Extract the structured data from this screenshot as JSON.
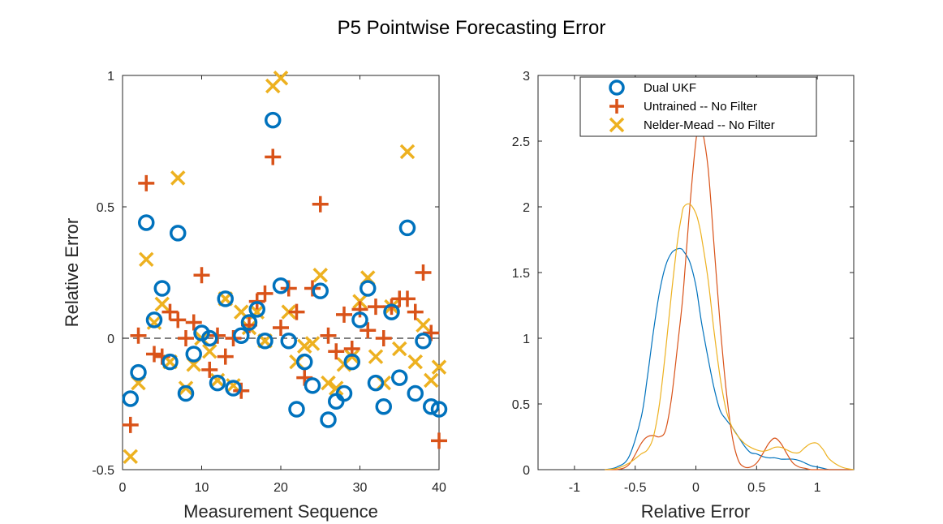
{
  "chart_data": [
    {
      "type": "scatter",
      "title": "P5 Pointwise Forecasting Error",
      "xlabel": "Measurement Sequence",
      "ylabel": "Relative Error",
      "xlim": [
        0,
        40
      ],
      "ylim": [
        -0.5,
        1
      ],
      "xticks": [
        "0",
        "10",
        "20",
        "30",
        "40"
      ],
      "yticks": [
        "-0.5",
        "0",
        "0.5",
        "1"
      ],
      "reference_line": 0,
      "series": [
        {
          "name": "Dual UKF",
          "marker": "circle",
          "color": "#0072BD",
          "x": [
            1,
            2,
            3,
            4,
            5,
            6,
            7,
            8,
            9,
            10,
            11,
            12,
            13,
            14,
            15,
            16,
            17,
            18,
            19,
            20,
            21,
            22,
            23,
            24,
            25,
            26,
            27,
            28,
            29,
            30,
            31,
            32,
            33,
            34,
            35,
            36,
            37,
            38,
            39,
            40
          ],
          "y": [
            -0.23,
            -0.13,
            0.44,
            0.07,
            0.19,
            -0.09,
            0.4,
            -0.21,
            -0.06,
            0.02,
            0.0,
            -0.17,
            0.15,
            -0.19,
            0.01,
            0.06,
            0.11,
            -0.01,
            0.83,
            0.2,
            -0.01,
            -0.27,
            -0.09,
            -0.18,
            0.18,
            -0.31,
            -0.24,
            -0.21,
            -0.09,
            0.07,
            0.19,
            -0.17,
            -0.26,
            0.1,
            -0.15,
            0.42,
            -0.21,
            -0.01,
            -0.26,
            -0.27
          ]
        },
        {
          "name": "Untrained -- No Filter",
          "marker": "plus",
          "color": "#D95319",
          "x": [
            1,
            2,
            3,
            4,
            5,
            6,
            7,
            8,
            9,
            10,
            11,
            12,
            13,
            14,
            15,
            16,
            17,
            18,
            19,
            20,
            21,
            22,
            23,
            24,
            25,
            26,
            27,
            28,
            29,
            30,
            31,
            32,
            33,
            34,
            35,
            36,
            37,
            38,
            39,
            40
          ],
          "y": [
            -0.33,
            0.01,
            0.59,
            -0.06,
            -0.07,
            0.1,
            0.07,
            0.0,
            0.06,
            0.24,
            -0.12,
            0.01,
            -0.07,
            0.0,
            -0.2,
            0.05,
            0.14,
            0.17,
            0.69,
            0.04,
            0.19,
            0.1,
            -0.15,
            0.19,
            0.51,
            0.01,
            -0.05,
            0.09,
            -0.04,
            0.11,
            0.03,
            0.12,
            0.0,
            0.12,
            0.15,
            0.15,
            0.1,
            0.25,
            0.02,
            -0.39
          ]
        },
        {
          "name": "Nelder-Mead -- No Filter",
          "marker": "x",
          "color": "#EDB120",
          "x": [
            1,
            2,
            3,
            4,
            5,
            6,
            7,
            8,
            9,
            10,
            11,
            12,
            13,
            14,
            15,
            16,
            17,
            18,
            19,
            20,
            21,
            22,
            23,
            24,
            25,
            26,
            27,
            28,
            29,
            30,
            31,
            32,
            33,
            34,
            35,
            36,
            37,
            38,
            39,
            40
          ],
          "y": [
            -0.45,
            -0.17,
            0.3,
            0.06,
            0.13,
            -0.09,
            0.61,
            -0.19,
            -0.1,
            0.0,
            -0.05,
            -0.16,
            0.15,
            -0.18,
            0.1,
            0.04,
            0.1,
            -0.01,
            0.96,
            0.99,
            0.1,
            -0.09,
            -0.03,
            -0.02,
            0.24,
            -0.17,
            -0.19,
            -0.1,
            -0.07,
            0.14,
            0.23,
            -0.07,
            -0.17,
            0.12,
            -0.04,
            0.71,
            -0.09,
            0.05,
            -0.16,
            -0.11
          ]
        }
      ]
    },
    {
      "type": "line",
      "title": "",
      "xlabel": "Relative Error",
      "ylabel": "",
      "xlim": [
        -1.3,
        1.3
      ],
      "ylim": [
        0,
        3
      ],
      "xticks": [
        "-1",
        "-0.5",
        "0",
        "0.5",
        "1"
      ],
      "yticks": [
        "0",
        "0.5",
        "1",
        "1.5",
        "2",
        "2.5",
        "3"
      ],
      "legend": {
        "position": "top",
        "entries": [
          "Dual UKF",
          "Untrained -- No Filter",
          "Nelder-Mead -- No Filter"
        ]
      },
      "x": [
        -0.75,
        -0.65,
        -0.55,
        -0.45,
        -0.4,
        -0.35,
        -0.3,
        -0.25,
        -0.2,
        -0.15,
        -0.12,
        -0.1,
        -0.05,
        0.0,
        0.03,
        0.05,
        0.1,
        0.15,
        0.2,
        0.25,
        0.3,
        0.35,
        0.4,
        0.45,
        0.5,
        0.55,
        0.6,
        0.65,
        0.7,
        0.75,
        0.8,
        0.85,
        0.9,
        0.95,
        1.0,
        1.05,
        1.1,
        1.2,
        1.3
      ],
      "series": [
        {
          "name": "Dual UKF",
          "color": "#0072BD",
          "values": [
            0.0,
            0.02,
            0.1,
            0.4,
            0.7,
            1.05,
            1.35,
            1.55,
            1.65,
            1.68,
            1.68,
            1.66,
            1.58,
            1.4,
            1.22,
            1.1,
            0.85,
            0.62,
            0.45,
            0.38,
            0.32,
            0.25,
            0.18,
            0.13,
            0.12,
            0.1,
            0.09,
            0.09,
            0.08,
            0.08,
            0.08,
            0.07,
            0.05,
            0.03,
            0.02,
            0.01,
            0.0,
            0.0,
            0.0
          ]
        },
        {
          "name": "Untrained -- No Filter",
          "color": "#D95319",
          "values": [
            0.0,
            0.0,
            0.04,
            0.2,
            0.25,
            0.26,
            0.25,
            0.3,
            0.55,
            0.95,
            1.2,
            1.4,
            2.0,
            2.5,
            2.62,
            2.6,
            2.3,
            1.7,
            1.1,
            0.6,
            0.25,
            0.07,
            0.02,
            0.02,
            0.05,
            0.12,
            0.2,
            0.24,
            0.2,
            0.12,
            0.05,
            0.02,
            0.01,
            0.0,
            0.0,
            0.0,
            0.0,
            0.0,
            0.0
          ]
        },
        {
          "name": "Nelder-Mead -- No Filter",
          "color": "#EDB120",
          "values": [
            0.0,
            0.01,
            0.05,
            0.12,
            0.15,
            0.25,
            0.5,
            0.9,
            1.35,
            1.75,
            1.92,
            2.0,
            2.02,
            1.95,
            1.85,
            1.75,
            1.45,
            1.05,
            0.7,
            0.45,
            0.32,
            0.25,
            0.2,
            0.17,
            0.15,
            0.14,
            0.15,
            0.17,
            0.17,
            0.15,
            0.13,
            0.13,
            0.17,
            0.2,
            0.2,
            0.15,
            0.08,
            0.02,
            0.0
          ]
        }
      ]
    }
  ]
}
